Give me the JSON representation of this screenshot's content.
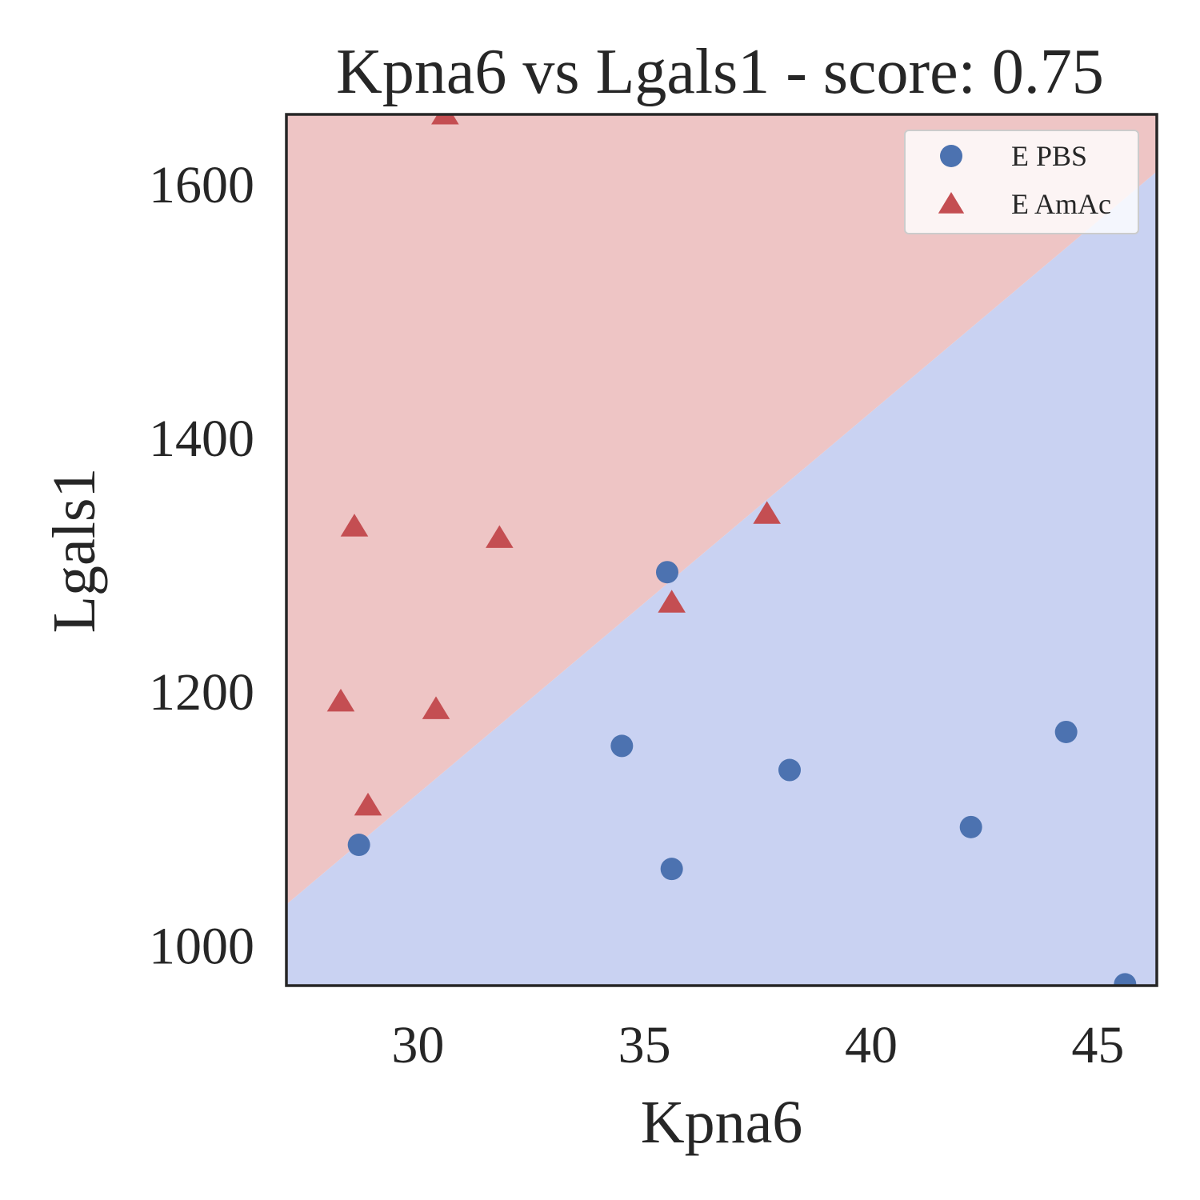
{
  "chart_data": {
    "type": "scatter",
    "title": "Kpna6 vs Lgals1 - score: 0.75",
    "xlabel": "Kpna6",
    "ylabel": "Lgals1",
    "xlim": [
      27.1,
      46.3
    ],
    "ylim": [
      968,
      1655
    ],
    "xticks": [
      30,
      35,
      40,
      45
    ],
    "yticks": [
      1000,
      1200,
      1400,
      1600
    ],
    "grid": false,
    "legend_position": "top-right",
    "decision_boundary": {
      "points": [
        [
          27.1,
          1032
        ],
        [
          46.3,
          1610
        ]
      ],
      "region_above_color": "#eec5c5",
      "region_below_color": "#c9d2f2"
    },
    "series": [
      {
        "name": "E PBS",
        "marker": "circle",
        "color": "#4c72b0",
        "points": [
          {
            "x": 28.7,
            "y": 1079
          },
          {
            "x": 34.5,
            "y": 1157
          },
          {
            "x": 35.5,
            "y": 1294
          },
          {
            "x": 35.6,
            "y": 1060
          },
          {
            "x": 38.2,
            "y": 1138
          },
          {
            "x": 42.2,
            "y": 1093
          },
          {
            "x": 44.3,
            "y": 1168
          },
          {
            "x": 45.6,
            "y": 969
          }
        ]
      },
      {
        "name": "E AmAc",
        "marker": "triangle",
        "color": "#c44e52",
        "points": [
          {
            "x": 30.6,
            "y": 1655
          },
          {
            "x": 28.6,
            "y": 1330
          },
          {
            "x": 31.8,
            "y": 1321
          },
          {
            "x": 37.7,
            "y": 1340
          },
          {
            "x": 35.6,
            "y": 1270
          },
          {
            "x": 28.3,
            "y": 1192
          },
          {
            "x": 30.4,
            "y": 1186
          },
          {
            "x": 28.9,
            "y": 1110
          }
        ]
      }
    ]
  }
}
